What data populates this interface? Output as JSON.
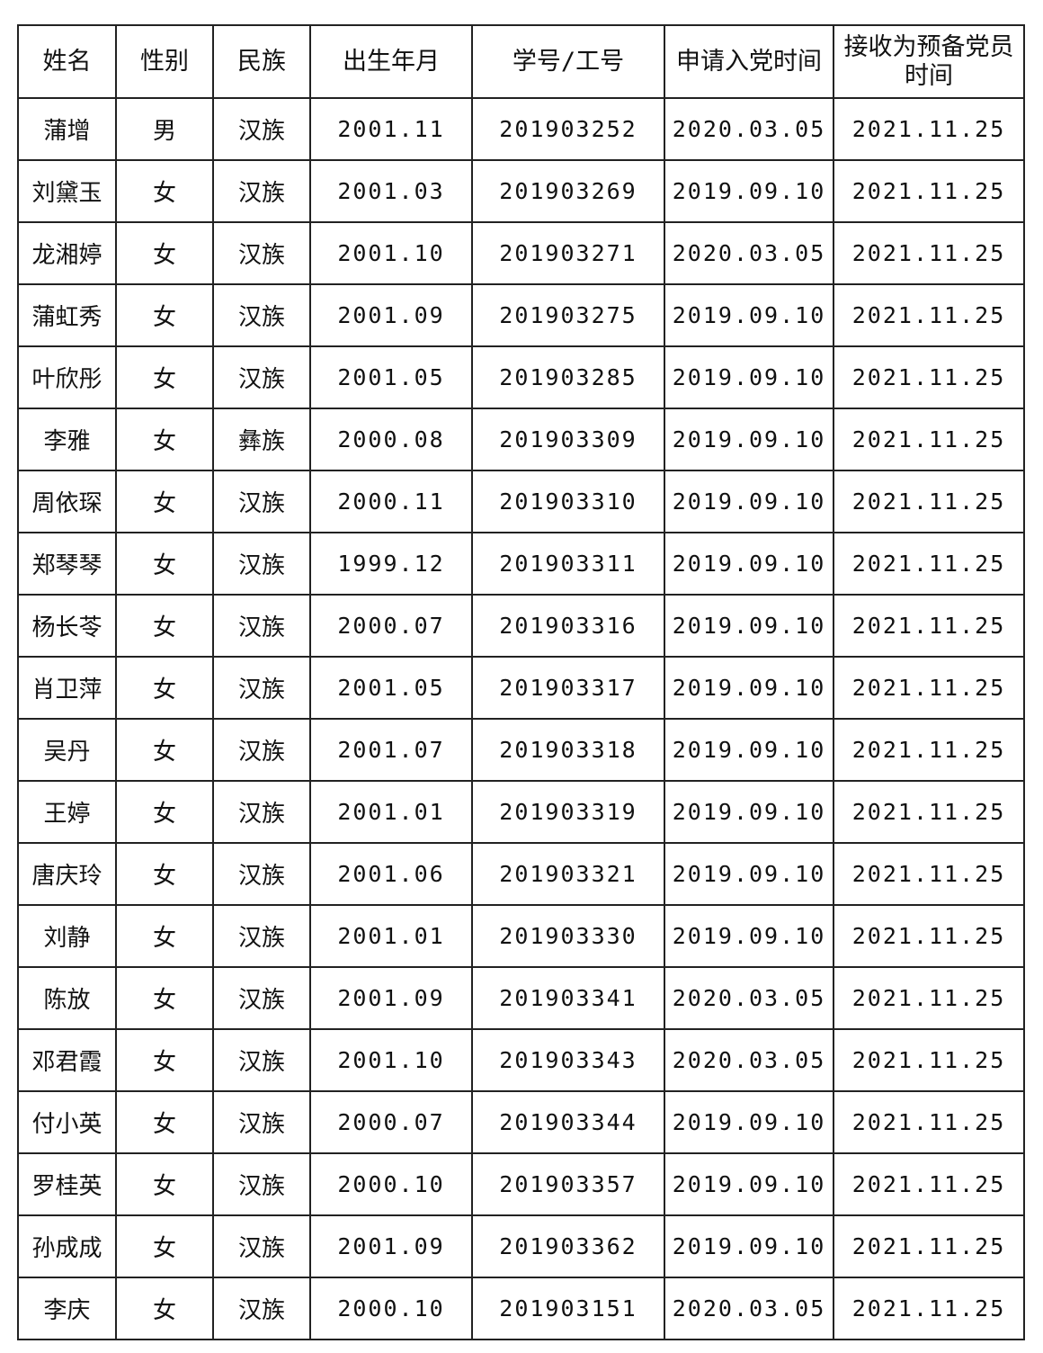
{
  "headers": [
    "姓名",
    "性别",
    "民族",
    "出生年月",
    "学号/工号",
    "申请入党时间",
    "接收为预备党员时间"
  ],
  "rows": [
    [
      "蒲增",
      "男",
      "汉族",
      "2001.11",
      "201903252",
      "2020.03.05",
      "2021.11.25"
    ],
    [
      "刘黛玉",
      "女",
      "汉族",
      "2001.03",
      "201903269",
      "2019.09.10",
      "2021.11.25"
    ],
    [
      "龙湘婷",
      "女",
      "汉族",
      "2001.10",
      "201903271",
      "2020.03.05",
      "2021.11.25"
    ],
    [
      "蒲虹秀",
      "女",
      "汉族",
      "2001.09",
      "201903275",
      "2019.09.10",
      "2021.11.25"
    ],
    [
      "叶欣彤",
      "女",
      "汉族",
      "2001.05",
      "201903285",
      "2019.09.10",
      "2021.11.25"
    ],
    [
      "李雅",
      "女",
      "彝族",
      "2000.08",
      "201903309",
      "2019.09.10",
      "2021.11.25"
    ],
    [
      "周依琛",
      "女",
      "汉族",
      "2000.11",
      "201903310",
      "2019.09.10",
      "2021.11.25"
    ],
    [
      "郑琴琴",
      "女",
      "汉族",
      "1999.12",
      "201903311",
      "2019.09.10",
      "2021.11.25"
    ],
    [
      "杨长苓",
      "女",
      "汉族",
      "2000.07",
      "201903316",
      "2019.09.10",
      "2021.11.25"
    ],
    [
      "肖卫萍",
      "女",
      "汉族",
      "2001.05",
      "201903317",
      "2019.09.10",
      "2021.11.25"
    ],
    [
      "吴丹",
      "女",
      "汉族",
      "2001.07",
      "201903318",
      "2019.09.10",
      "2021.11.25"
    ],
    [
      "王婷",
      "女",
      "汉族",
      "2001.01",
      "201903319",
      "2019.09.10",
      "2021.11.25"
    ],
    [
      "唐庆玲",
      "女",
      "汉族",
      "2001.06",
      "201903321",
      "2019.09.10",
      "2021.11.25"
    ],
    [
      "刘静",
      "女",
      "汉族",
      "2001.01",
      "201903330",
      "2019.09.10",
      "2021.11.25"
    ],
    [
      "陈放",
      "女",
      "汉族",
      "2001.09",
      "201903341",
      "2020.03.05",
      "2021.11.25"
    ],
    [
      "邓君霞",
      "女",
      "汉族",
      "2001.10",
      "201903343",
      "2020.03.05",
      "2021.11.25"
    ],
    [
      "付小英",
      "女",
      "汉族",
      "2000.07",
      "201903344",
      "2019.09.10",
      "2021.11.25"
    ],
    [
      "罗桂英",
      "女",
      "汉族",
      "2000.10",
      "201903357",
      "2019.09.10",
      "2021.11.25"
    ],
    [
      "孙成成",
      "女",
      "汉族",
      "2001.09",
      "201903362",
      "2019.09.10",
      "2021.11.25"
    ],
    [
      "李庆",
      "女",
      "汉族",
      "2000.10",
      "201903151",
      "2020.03.05",
      "2021.11.25"
    ]
  ]
}
